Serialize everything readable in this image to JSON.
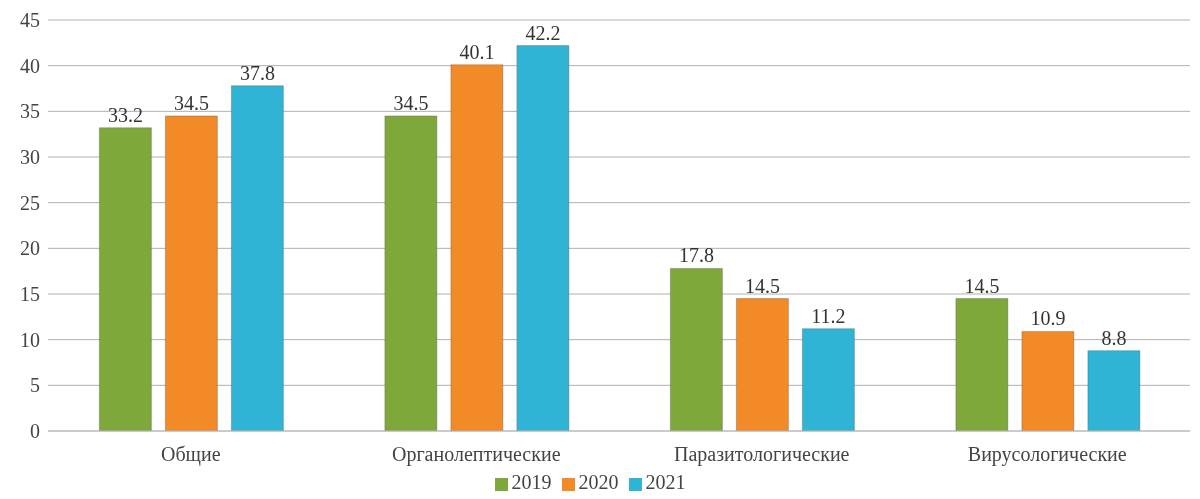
{
  "chart_data": {
    "type": "bar",
    "categories": [
      "Общие",
      "Органолептические",
      "Паразитологические",
      "Вирусологические"
    ],
    "series": [
      {
        "name": "2019",
        "color": "#7fa83a",
        "values": [
          33.2,
          34.5,
          17.8,
          14.5
        ]
      },
      {
        "name": "2020",
        "color": "#f28a27",
        "values": [
          34.5,
          40.1,
          14.5,
          10.9
        ]
      },
      {
        "name": "2021",
        "color": "#2fb4d6",
        "values": [
          37.8,
          42.2,
          11.2,
          8.8
        ]
      }
    ],
    "ylim": [
      0,
      45
    ],
    "yticks": [
      0,
      5,
      10,
      15,
      20,
      25,
      30,
      35,
      40,
      45
    ],
    "grid": "y",
    "legend": "bottom",
    "data_labels": true
  }
}
